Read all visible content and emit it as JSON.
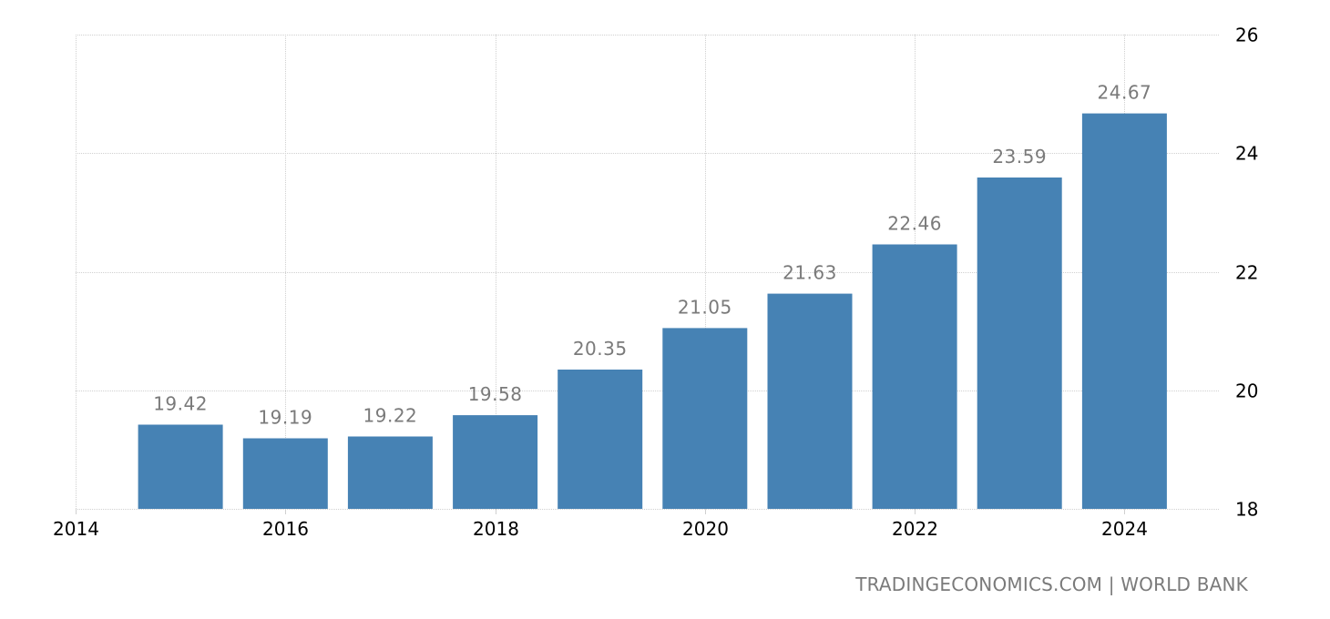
{
  "chart_data": {
    "type": "bar",
    "title": "",
    "xlabel": "",
    "ylabel": "",
    "categories": [
      "2015",
      "2016",
      "2017",
      "2018",
      "2019",
      "2020",
      "2021",
      "2022",
      "2023",
      "2024"
    ],
    "values": [
      19.42,
      19.19,
      19.22,
      19.58,
      20.35,
      21.05,
      21.63,
      22.46,
      23.59,
      24.67
    ],
    "data_labels": [
      "19.42",
      "19.19",
      "19.22",
      "19.58",
      "20.35",
      "21.05",
      "21.63",
      "22.46",
      "23.59",
      "24.67"
    ],
    "ylim": [
      18,
      26
    ],
    "y_ticks": [
      18,
      20,
      22,
      24,
      26
    ],
    "y_tick_labels": [
      "18",
      "20",
      "22",
      "24",
      "26"
    ],
    "x_ticks": [
      "2014",
      "2016",
      "2018",
      "2020",
      "2022",
      "2024"
    ],
    "x_range": [
      2014,
      2024.9
    ],
    "y_axis_position": "right",
    "grid": true,
    "legend": null,
    "bar_color": "#4682b4"
  },
  "colors": {
    "bar": "#4682b4",
    "label": "#7a7a7a",
    "tick": "#000000",
    "grid": "#d0d0d0"
  },
  "footer": {
    "source": "TRADINGECONOMICS.COM | WORLD BANK"
  }
}
